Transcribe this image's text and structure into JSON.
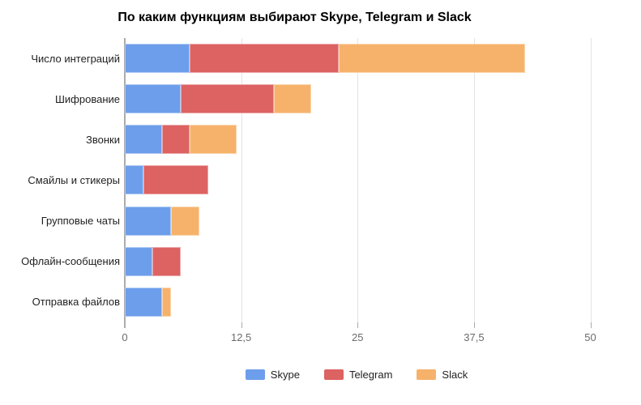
{
  "title": "По каким функциям выбирают Skype, Telegram и Slack",
  "chart_data": {
    "type": "bar",
    "orientation": "horizontal",
    "stacked": true,
    "title": "По каким функциям выбирают Skype, Telegram и Slack",
    "categories": [
      "Число интеграций",
      "Шифрование",
      "Звонки",
      "Смайлы и стикеры",
      "Групповые чаты",
      "Офлайн-сообщения",
      "Отправка файлов"
    ],
    "series": [
      {
        "name": "Skype",
        "color": "#6d9eeb",
        "values": [
          7,
          6,
          4,
          2,
          5,
          3,
          4
        ]
      },
      {
        "name": "Telegram",
        "color": "#dd6262",
        "values": [
          16,
          10,
          3,
          7,
          0,
          3,
          0
        ]
      },
      {
        "name": "Slack",
        "color": "#f6b26b",
        "values": [
          20,
          4,
          5,
          0,
          3,
          0,
          1
        ]
      }
    ],
    "totals": [
      43,
      20,
      12,
      9,
      8,
      6,
      5
    ],
    "xlabel": "",
    "ylabel": "",
    "x_tick_labels": [
      "0",
      "12,5",
      "25",
      "37,5",
      "50"
    ],
    "x_tick_values": [
      0,
      12.5,
      25,
      37.5,
      50
    ],
    "xlim": [
      0,
      55
    ],
    "grid": "vertical",
    "legend_position": "bottom"
  },
  "colors": {
    "background": "#ffffff",
    "title": "#000000",
    "category_label": "#1f1f1f",
    "tick_label": "#6b6b6b",
    "axis_line": "#ababab",
    "gridline": "#e3e3e3",
    "skype": "#6d9eeb",
    "telegram": "#dd6262",
    "slack": "#f6b26b"
  }
}
